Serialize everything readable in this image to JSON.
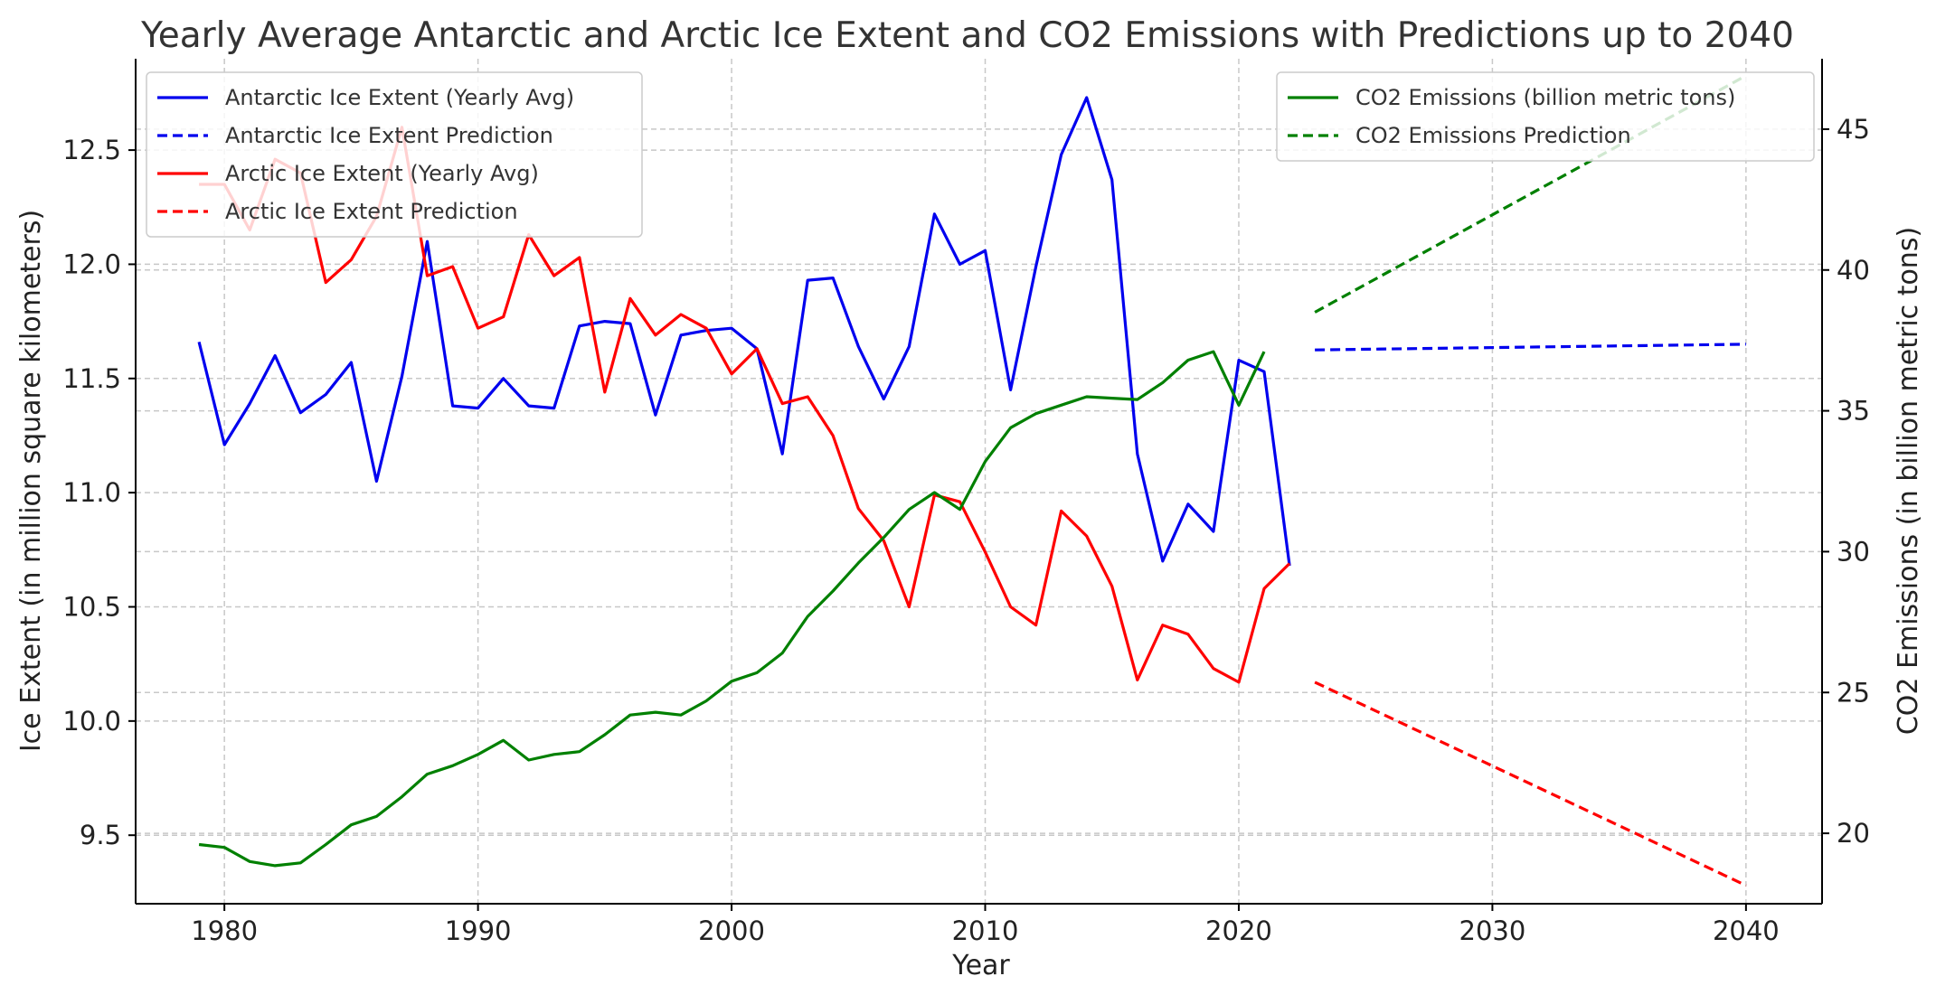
{
  "chart_data": {
    "type": "line",
    "title": "Yearly Average Antarctic and Arctic Ice Extent and CO2 Emissions with Predictions up to 2040",
    "xlabel": "Year",
    "ylabel": "Ice Extent (in million square kilometers)",
    "ylabel_right": "CO2 Emissions (in billion metric tons)",
    "xlim": [
      1976.5,
      2043
    ],
    "ylim": [
      9.2,
      12.9
    ],
    "ylim_right": [
      17.5,
      47.5
    ],
    "x_ticks": [
      1980,
      1990,
      2000,
      2010,
      2020,
      2030,
      2040
    ],
    "y_ticks": [
      9.5,
      10.0,
      10.5,
      11.0,
      11.5,
      12.0,
      12.5
    ],
    "y_ticks_right": [
      20,
      25,
      30,
      35,
      40,
      45
    ],
    "y_tick_labels": [
      "9.5",
      "10.0",
      "10.5",
      "11.0",
      "11.5",
      "12.0",
      "12.5"
    ],
    "y_tick_labels_right": [
      "20",
      "25",
      "30",
      "35",
      "40",
      "45"
    ],
    "grid": true,
    "legend_left_placement": "upper-left",
    "legend_right_placement": "upper-right",
    "series": [
      {
        "name": "Antarctic Ice Extent (Yearly Avg)",
        "axis": "left",
        "color": "#0000ee",
        "dash": "solid",
        "x": [
          1979,
          1980,
          1981,
          1982,
          1983,
          1984,
          1985,
          1986,
          1987,
          1988,
          1989,
          1990,
          1991,
          1992,
          1993,
          1994,
          1995,
          1996,
          1997,
          1998,
          1999,
          2000,
          2001,
          2002,
          2003,
          2004,
          2005,
          2006,
          2007,
          2008,
          2009,
          2010,
          2011,
          2012,
          2013,
          2014,
          2015,
          2016,
          2017,
          2018,
          2019,
          2020,
          2021,
          2022
        ],
        "y": [
          11.66,
          11.21,
          11.39,
          11.6,
          11.35,
          11.43,
          11.57,
          11.05,
          11.51,
          12.1,
          11.38,
          11.37,
          11.5,
          11.38,
          11.37,
          11.73,
          11.75,
          11.74,
          11.34,
          11.69,
          11.71,
          11.72,
          11.63,
          11.17,
          11.93,
          11.94,
          11.64,
          11.41,
          11.64,
          12.22,
          12.0,
          12.06,
          11.45,
          11.99,
          12.48,
          12.73,
          12.37,
          11.17,
          10.7,
          10.95,
          10.83,
          11.58,
          11.53,
          10.68
        ]
      },
      {
        "name": "Antarctic Ice Extent Prediction",
        "axis": "left",
        "color": "#0000ee",
        "dash": "dashed",
        "x": [
          2023,
          2040
        ],
        "y": [
          11.625,
          11.65
        ]
      },
      {
        "name": "Arctic Ice Extent (Yearly Avg)",
        "axis": "left",
        "color": "#ff0000",
        "dash": "solid",
        "x": [
          1979,
          1980,
          1981,
          1982,
          1983,
          1984,
          1985,
          1986,
          1987,
          1988,
          1989,
          1990,
          1991,
          1992,
          1993,
          1994,
          1995,
          1996,
          1997,
          1998,
          1999,
          2000,
          2001,
          2002,
          2003,
          2004,
          2005,
          2006,
          2007,
          2008,
          2009,
          2010,
          2011,
          2012,
          2013,
          2014,
          2015,
          2016,
          2017,
          2018,
          2019,
          2020,
          2021,
          2022
        ],
        "y": [
          12.35,
          12.35,
          12.15,
          12.46,
          12.4,
          11.92,
          12.02,
          12.21,
          12.6,
          11.95,
          11.99,
          11.72,
          11.77,
          12.13,
          11.95,
          12.03,
          11.44,
          11.85,
          11.69,
          11.78,
          11.72,
          11.52,
          11.63,
          11.39,
          11.42,
          11.25,
          10.93,
          10.79,
          10.5,
          10.99,
          10.96,
          10.74,
          10.5,
          10.42,
          10.92,
          10.81,
          10.59,
          10.18,
          10.42,
          10.38,
          10.23,
          10.17,
          10.58,
          10.69
        ]
      },
      {
        "name": "Arctic Ice Extent Prediction",
        "axis": "left",
        "color": "#ff0000",
        "dash": "dashed",
        "x": [
          2023,
          2040
        ],
        "y": [
          10.17,
          9.28
        ]
      },
      {
        "name": "CO2 Emissions (billion metric tons)",
        "axis": "right",
        "color": "#008000",
        "dash": "solid",
        "x": [
          1979,
          1980,
          1981,
          1982,
          1983,
          1984,
          1985,
          1986,
          1987,
          1988,
          1989,
          1990,
          1991,
          1992,
          1993,
          1994,
          1995,
          1996,
          1997,
          1998,
          1999,
          2000,
          2001,
          2002,
          2003,
          2004,
          2005,
          2006,
          2007,
          2008,
          2009,
          2010,
          2011,
          2012,
          2013,
          2014,
          2015,
          2016,
          2017,
          2018,
          2019,
          2020,
          2021
        ],
        "y": [
          19.6,
          19.5,
          19.0,
          18.85,
          18.95,
          19.6,
          20.3,
          20.6,
          21.3,
          22.1,
          22.4,
          22.8,
          23.3,
          22.6,
          22.8,
          22.9,
          23.5,
          24.2,
          24.3,
          24.2,
          24.7,
          25.4,
          25.7,
          26.4,
          27.7,
          28.6,
          29.6,
          30.5,
          31.5,
          32.1,
          31.5,
          33.2,
          34.4,
          34.9,
          35.2,
          35.5,
          35.45,
          35.4,
          36.0,
          36.8,
          37.1,
          35.2,
          37.1
        ]
      },
      {
        "name": "CO2 Emissions Prediction",
        "axis": "right",
        "color": "#008000",
        "dash": "dashed",
        "x": [
          2023,
          2040
        ],
        "y": [
          38.5,
          46.9
        ]
      }
    ]
  }
}
